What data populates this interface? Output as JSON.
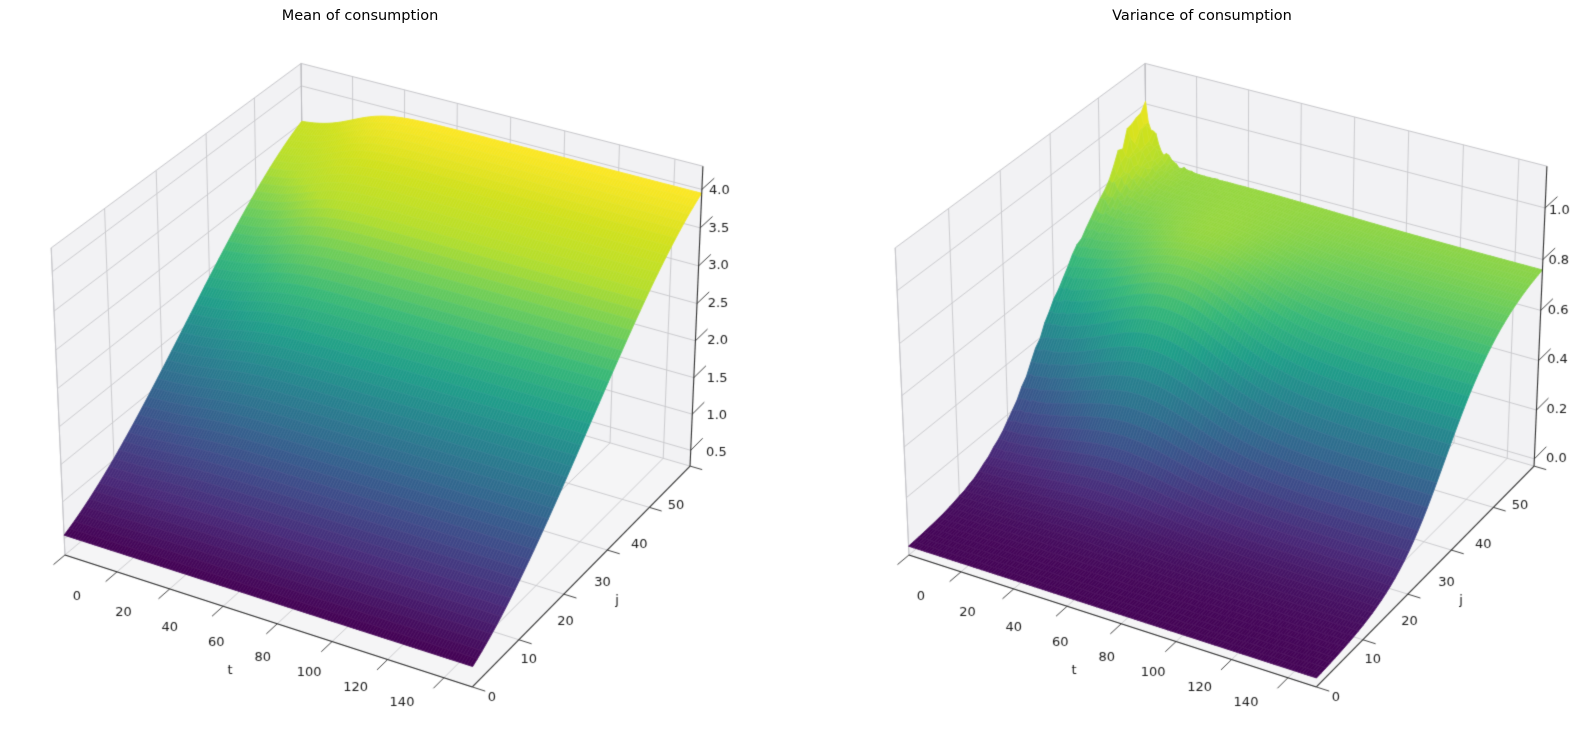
{
  "figure": {
    "background": "#ffffff",
    "colormap": "viridis",
    "colormap_colors": {
      "low": "#440154",
      "mid": "#21918c",
      "high": "#fde725"
    },
    "text_color": "#1a1a1a",
    "pane_color": "#f2f2f4",
    "floor_color": "#f5f5f6",
    "grid_color": "#c7c7cb",
    "spine_color": "#2e2e2e"
  },
  "chart_data": [
    {
      "type": "surface",
      "title": "Mean of consumption",
      "xlabel": "t",
      "ylabel": "j",
      "x_range": [
        0,
        150
      ],
      "y_range": [
        0,
        50
      ],
      "x_ticks": [
        0,
        20,
        40,
        60,
        80,
        100,
        120,
        140
      ],
      "x_tick_labels": [
        "0",
        "20",
        "40",
        "60",
        "80",
        "100",
        "120",
        "140"
      ],
      "y_ticks": [
        0,
        10,
        20,
        30,
        40,
        50
      ],
      "y_tick_labels": [
        "0",
        "10",
        "20",
        "30",
        "40",
        "50"
      ],
      "z_ticks": [
        0.5,
        1.0,
        1.5,
        2.0,
        2.5,
        3.0,
        3.5,
        4.0
      ],
      "z_tick_labels": [
        "0.5",
        "1.0",
        "1.5",
        "2.0",
        "2.5",
        "3.0",
        "3.5",
        "4.0"
      ],
      "z_data_range": [
        0.55,
        3.95
      ],
      "surface_model": {
        "kind": "mean",
        "front_value": 0.55,
        "amplitude": 3.4,
        "back_plateau": 3.95,
        "back_value_at_t0": 3.52,
        "dip_amp": 0.45,
        "t_transition_center": 20,
        "t_transition_width": 7
      },
      "samples": {
        "t": [
          0,
          20,
          40,
          60,
          80,
          100,
          120,
          140
        ],
        "j": [
          0,
          10,
          20,
          30,
          40,
          50
        ],
        "z": [
          [
            0.55,
            1.02,
            1.68,
            2.4,
            3.06,
            3.52
          ],
          [
            0.55,
            1.05,
            1.75,
            2.52,
            3.23,
            3.73
          ],
          [
            0.55,
            1.08,
            1.83,
            2.65,
            3.4,
            3.93
          ],
          [
            0.55,
            1.08,
            1.84,
            2.66,
            3.42,
            3.95
          ],
          [
            0.55,
            1.08,
            1.84,
            2.66,
            3.42,
            3.95
          ],
          [
            0.55,
            1.08,
            1.84,
            2.66,
            3.42,
            3.95
          ],
          [
            0.55,
            1.08,
            1.84,
            2.66,
            3.42,
            3.95
          ],
          [
            0.55,
            1.08,
            1.84,
            2.66,
            3.42,
            3.95
          ]
        ]
      }
    },
    {
      "type": "surface",
      "title": "Variance of consumption",
      "xlabel": "t",
      "ylabel": "j",
      "x_range": [
        0,
        150
      ],
      "y_range": [
        0,
        50
      ],
      "x_ticks": [
        0,
        20,
        40,
        60,
        80,
        100,
        120,
        140
      ],
      "x_tick_labels": [
        "0",
        "20",
        "40",
        "60",
        "80",
        "100",
        "120",
        "140"
      ],
      "y_ticks": [
        0,
        10,
        20,
        30,
        40,
        50
      ],
      "y_tick_labels": [
        "0",
        "10",
        "20",
        "30",
        "40",
        "50"
      ],
      "z_ticks": [
        0.0,
        0.2,
        0.4,
        0.6,
        0.8,
        1.0
      ],
      "z_tick_labels": [
        "0.0",
        "0.2",
        "0.4",
        "0.6",
        "0.8",
        "1.0"
      ],
      "z_data_range": [
        0.0,
        1.02
      ],
      "surface_model": {
        "kind": "variance",
        "floor": 0.0,
        "plateau": 0.78,
        "sigmoid_center_j": 27,
        "sigmoid_width_j": 5.5,
        "hump": {
          "amp": 0.16,
          "t_center": 45,
          "t_sigma": 20,
          "j_center": 29,
          "j_sigma": 8
        },
        "valley": {
          "amp": 0.055,
          "t_center": 85,
          "t_width": 14,
          "j_center": 31,
          "j_sigma": 10
        },
        "spike": {
          "amp": 0.24,
          "t_decay": 5,
          "j_center": 43.5,
          "j_width": 2.2
        },
        "noise": {
          "amp": 0.05,
          "t_decay": 8
        }
      },
      "samples": {
        "t": [
          0,
          20,
          40,
          60,
          80,
          100,
          120,
          140
        ],
        "j": [
          0,
          10,
          20,
          30,
          40,
          50
        ],
        "z": [
          [
            0.01,
            0.03,
            0.17,
            0.51,
            0.76,
            1.0
          ],
          [
            0.01,
            0.04,
            0.21,
            0.57,
            0.74,
            0.77
          ],
          [
            0.01,
            0.04,
            0.26,
            0.66,
            0.78,
            0.77
          ],
          [
            0.01,
            0.04,
            0.23,
            0.61,
            0.76,
            0.77
          ],
          [
            0.01,
            0.03,
            0.18,
            0.51,
            0.71,
            0.77
          ],
          [
            0.01,
            0.03,
            0.15,
            0.46,
            0.69,
            0.76
          ],
          [
            0.01,
            0.03,
            0.14,
            0.44,
            0.68,
            0.76
          ],
          [
            0.01,
            0.03,
            0.14,
            0.44,
            0.68,
            0.76
          ]
        ]
      }
    }
  ]
}
